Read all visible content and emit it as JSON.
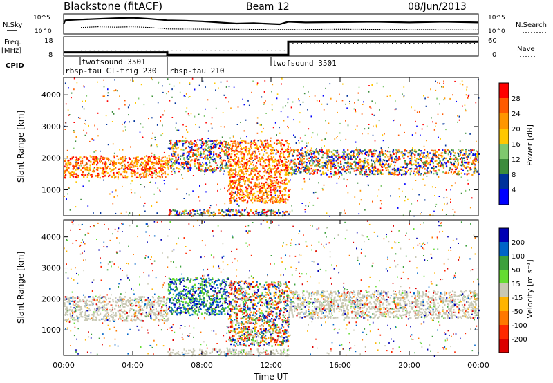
{
  "chart_data": [
    {
      "type": "line",
      "panel": "noise",
      "title": "Blackstone (fitACF)",
      "subtitle": "Beam 12",
      "date": "08/Jun/2013",
      "left_label": "N.Sky",
      "right_label": "N.Search",
      "y_ticks_left": [
        "10^5",
        "10^0"
      ],
      "y_ticks_right": [
        "10^5",
        "10^0"
      ],
      "series": [
        {
          "values": [
            {
              "x": 0.0,
              "y": 2.6
            },
            {
              "x": 0.1,
              "y": 3.6
            },
            {
              "x": 1.0,
              "y": 3.8
            },
            {
              "x": 2.0,
              "y": 4.0
            },
            {
              "x": 3.0,
              "y": 4.2
            },
            {
              "x": 4.0,
              "y": 4.3
            },
            {
              "x": 5.0,
              "y": 4.0
            },
            {
              "x": 6.0,
              "y": 3.6
            },
            {
              "x": 7.0,
              "y": 3.5
            },
            {
              "x": 8.0,
              "y": 3.3
            },
            {
              "x": 9.0,
              "y": 3.0
            },
            {
              "x": 10.0,
              "y": 2.7
            },
            {
              "x": 11.0,
              "y": 2.8
            },
            {
              "x": 12.0,
              "y": 2.6
            },
            {
              "x": 12.5,
              "y": 2.5
            },
            {
              "x": 13.0,
              "y": 3.2
            },
            {
              "x": 14.0,
              "y": 3.0
            },
            {
              "x": 16.0,
              "y": 3.1
            },
            {
              "x": 18.0,
              "y": 3.2
            },
            {
              "x": 20.0,
              "y": 3.0
            },
            {
              "x": 22.0,
              "y": 3.2
            },
            {
              "x": 24.0,
              "y": 3.0
            }
          ]
        },
        {
          "values": [
            {
              "x": 1.0,
              "y": 1.6
            },
            {
              "x": 2.0,
              "y": 1.8
            },
            {
              "x": 3.0,
              "y": 1.7
            },
            {
              "x": 4.0,
              "y": 1.8
            },
            {
              "x": 5.0,
              "y": 1.6
            },
            {
              "x": 6.0,
              "y": 1.2
            },
            {
              "x": 13.0,
              "y": 1.0
            },
            {
              "x": 16.0,
              "y": 1.1
            },
            {
              "x": 20.0,
              "y": 1.0
            },
            {
              "x": 24.0,
              "y": 0.9
            }
          ]
        }
      ]
    },
    {
      "type": "line",
      "panel": "frequency",
      "left_label": "Freq.",
      "left_unit": "[MHz]",
      "right_label": "Nave",
      "y_ticks_left": [
        "18",
        "8"
      ],
      "y_ticks_right": [
        "60",
        "0"
      ],
      "series": [
        {
          "values": [
            {
              "x": 0.0,
              "y": 10.0
            },
            {
              "x": 6.0,
              "y": 10.0
            },
            {
              "x": 6.0,
              "y": 8.3
            },
            {
              "x": 13.0,
              "y": 8.3
            },
            {
              "x": 13.0,
              "y": 17.0
            },
            {
              "x": 24.0,
              "y": 17.0
            }
          ]
        }
      ]
    },
    {
      "type": "heatmap",
      "panel": "power",
      "ylabel": "Slant Range [km]",
      "ylim": [
        180,
        4550
      ],
      "y_ticks": [
        1000,
        2000,
        3000,
        4000
      ],
      "colorbar_label": "Power [dB]",
      "colorbar_ticks": [
        "28",
        "24",
        "20",
        "16",
        "12",
        "8",
        "4"
      ],
      "colorbar_colors": [
        "#ff0000",
        "#ff5a00",
        "#ff9600",
        "#ffc800",
        "#7fc86e",
        "#3c8c3c",
        "#00329b",
        "#0000ff"
      ],
      "regions": [
        {
          "x0": 0.0,
          "x1": 6.0,
          "y0": 1400,
          "y1": 2100,
          "level": "high"
        },
        {
          "x0": 6.0,
          "x1": 9.5,
          "y0": 1600,
          "y1": 2600,
          "level": "mixed"
        },
        {
          "x0": 9.5,
          "x1": 13.0,
          "y0": 600,
          "y1": 2600,
          "level": "high"
        },
        {
          "x0": 13.0,
          "x1": 24.0,
          "y0": 1500,
          "y1": 2300,
          "level": "mixed"
        },
        {
          "x0": 6.0,
          "x1": 13.0,
          "y0": 200,
          "y1": 400,
          "level": "mixed"
        }
      ]
    },
    {
      "type": "heatmap",
      "panel": "velocity",
      "xlabel": "Time UT",
      "ylabel": "Slant Range [km]",
      "ylim": [
        180,
        4550
      ],
      "y_ticks": [
        1000,
        2000,
        3000,
        4000
      ],
      "x_ticks": [
        "00:00",
        "04:00",
        "08:00",
        "12:00",
        "16:00",
        "20:00",
        "00:00"
      ],
      "colorbar_label": "Velocity [m s⁻¹]",
      "colorbar_ticks": [
        "200",
        "100",
        "50",
        "15",
        "-15",
        "-50",
        "-100",
        "-200"
      ],
      "colorbar_colors": [
        "#0000b4",
        "#0064c8",
        "#3ca03c",
        "#64dc32",
        "#c8c8b4",
        "#ffb400",
        "#ff7800",
        "#ff2800",
        "#dc0000"
      ],
      "regions": [
        {
          "x0": 0.0,
          "x1": 6.0,
          "y0": 1300,
          "y1": 2100,
          "level": "ground"
        },
        {
          "x0": 6.0,
          "x1": 9.5,
          "y0": 1500,
          "y1": 2700,
          "level": "positive"
        },
        {
          "x0": 9.5,
          "x1": 13.0,
          "y0": 500,
          "y1": 2600,
          "level": "mixed"
        },
        {
          "x0": 13.0,
          "x1": 24.0,
          "y0": 1400,
          "y1": 2300,
          "level": "ground"
        },
        {
          "x0": 6.0,
          "x1": 13.0,
          "y0": 200,
          "y1": 400,
          "level": "ground"
        }
      ]
    }
  ],
  "header": {
    "title": "Blackstone (fitACF)",
    "beam": "Beam 12",
    "date": "08/Jun/2013"
  },
  "noise_panel": {
    "left_label": "N.Sky",
    "right_label": "N.Search",
    "tick_top": "10^5",
    "tick_bottom": "10^0"
  },
  "freq_panel": {
    "label": "Freq.",
    "unit": "[MHz]",
    "tick_top": "18",
    "tick_bottom": "8",
    "right_label": "Nave",
    "right_tick_top": "60",
    "right_tick_bottom": "0"
  },
  "cpid": {
    "label": "CPID",
    "segments": [
      {
        "name": "twofsound 3501"
      },
      {
        "name": "rbsp-tau CT-trig 230"
      },
      {
        "name": "rbsp-tau 210"
      },
      {
        "name": "twofsound 3501"
      }
    ]
  },
  "colors": {
    "power": [
      "#ff0000",
      "#ff5a00",
      "#ff9600",
      "#ffc800",
      "#7fc86e",
      "#3c8c3c",
      "#00329b",
      "#0000ff"
    ],
    "velocity": [
      "#0000b4",
      "#0064c8",
      "#3ca03c",
      "#64dc32",
      "#c8c8b4",
      "#ffb400",
      "#ff7800",
      "#ff2800",
      "#dc0000"
    ],
    "ground_scatter": "#c8c8b4"
  }
}
